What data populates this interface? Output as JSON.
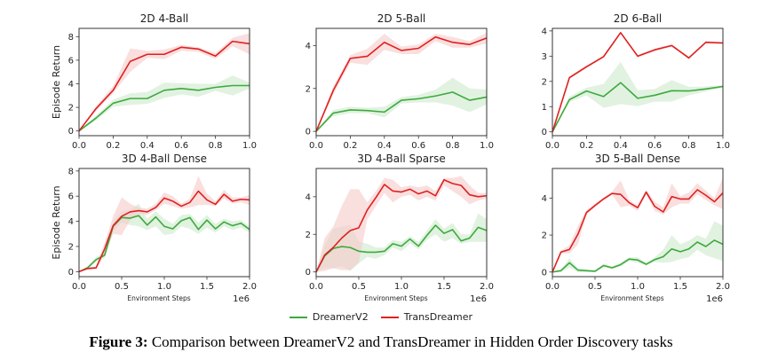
{
  "figure": {
    "caption_label": "Figure 3:",
    "caption_text": " Comparison between DreamerV2 and TransDreamer in Hidden Order Discovery tasks"
  },
  "legend": [
    {
      "name": "DreamerV2",
      "color": "#3daa3d"
    },
    {
      "name": "TransDreamer",
      "color": "#e02020"
    }
  ],
  "colors": {
    "dreamer": "#3daa3d",
    "trans": "#e02020",
    "dreamer_band": "#c9e8c9",
    "trans_band": "#f7caca"
  },
  "chart_data": [
    {
      "type": "line",
      "title": "2D 4-Ball",
      "xlabel": "",
      "ylabel": "Episode Return",
      "xlim": [
        0,
        1.0
      ],
      "ylim": [
        -0.4,
        8.7
      ],
      "xticks": [
        0.0,
        0.2,
        0.4,
        0.6,
        0.8,
        1.0
      ],
      "xticklabels": [
        "0.0",
        "0.2",
        "0.4",
        "0.6",
        "0.8",
        "1.0"
      ],
      "yticks": [
        0,
        2,
        4,
        6,
        8
      ],
      "yticklabels": [
        "0",
        "2",
        "4",
        "6",
        "8"
      ],
      "x_offset_label": "",
      "x": [
        0,
        0.1,
        0.2,
        0.3,
        0.4,
        0.5,
        0.6,
        0.7,
        0.8,
        0.9,
        1.0
      ],
      "series": [
        {
          "name": "DreamerV2",
          "values": [
            0,
            1.1,
            2.35,
            2.75,
            2.75,
            3.45,
            3.6,
            3.45,
            3.7,
            3.85,
            3.85
          ],
          "lower": [
            0,
            0.9,
            2.05,
            2.2,
            2.3,
            2.8,
            3.1,
            2.9,
            3.4,
            3.0,
            3.6
          ],
          "upper": [
            0,
            1.3,
            2.65,
            3.2,
            3.3,
            4.1,
            4.05,
            4.0,
            4.0,
            4.7,
            4.1
          ]
        },
        {
          "name": "TransDreamer",
          "values": [
            0,
            1.9,
            3.45,
            5.9,
            6.5,
            6.5,
            7.1,
            6.95,
            6.35,
            7.6,
            7.4
          ],
          "lower": [
            0,
            1.7,
            3.2,
            5.0,
            6.2,
            6.1,
            6.8,
            6.7,
            6.1,
            7.2,
            6.5
          ],
          "upper": [
            0,
            2.1,
            3.8,
            7.0,
            6.8,
            6.9,
            7.3,
            7.1,
            6.6,
            7.9,
            8.3
          ]
        }
      ]
    },
    {
      "type": "line",
      "title": "2D 5-Ball",
      "xlabel": "",
      "ylabel": "",
      "xlim": [
        0,
        1.0
      ],
      "ylim": [
        -0.2,
        4.8
      ],
      "xticks": [
        0.0,
        0.2,
        0.4,
        0.6,
        0.8,
        1.0
      ],
      "xticklabels": [
        "0.0",
        "0.2",
        "0.4",
        "0.6",
        "0.8",
        "1.0"
      ],
      "yticks": [
        0,
        2,
        4
      ],
      "yticklabels": [
        "0",
        "2",
        "4"
      ],
      "x_offset_label": "",
      "x": [
        0,
        0.1,
        0.2,
        0.3,
        0.4,
        0.5,
        0.6,
        0.7,
        0.8,
        0.9,
        1.0
      ],
      "series": [
        {
          "name": "DreamerV2",
          "values": [
            0,
            0.85,
            1.0,
            0.97,
            0.9,
            1.45,
            1.52,
            1.65,
            1.83,
            1.45,
            1.6
          ],
          "lower": [
            0,
            0.7,
            0.85,
            0.85,
            0.65,
            1.3,
            1.35,
            1.35,
            1.2,
            0.9,
            1.25
          ],
          "upper": [
            0,
            1.0,
            1.15,
            1.1,
            1.15,
            1.6,
            1.7,
            1.95,
            2.5,
            2.0,
            1.95
          ]
        },
        {
          "name": "TransDreamer",
          "values": [
            0,
            1.9,
            3.4,
            3.5,
            4.15,
            3.77,
            3.87,
            4.4,
            4.15,
            4.05,
            4.35
          ],
          "lower": [
            0,
            1.7,
            3.2,
            3.1,
            3.8,
            3.6,
            3.6,
            4.2,
            3.9,
            3.9,
            4.1
          ],
          "upper": [
            0,
            2.1,
            3.55,
            3.85,
            4.55,
            3.95,
            4.05,
            4.55,
            4.4,
            4.2,
            4.6
          ]
        }
      ]
    },
    {
      "type": "line",
      "title": "2D 6-Ball",
      "xlabel": "",
      "ylabel": "",
      "xlim": [
        0,
        1.0
      ],
      "ylim": [
        -0.15,
        4.1
      ],
      "xticks": [
        0.0,
        0.2,
        0.4,
        0.6,
        0.8,
        1.0
      ],
      "xticklabels": [
        "0.0",
        "0.2",
        "0.4",
        "0.6",
        "0.8",
        "1.0"
      ],
      "yticks": [
        0,
        1,
        2,
        3,
        4
      ],
      "yticklabels": [
        "0",
        "1",
        "2",
        "3",
        "4"
      ],
      "x_offset_label": "",
      "x": [
        0,
        0.1,
        0.2,
        0.3,
        0.4,
        0.5,
        0.6,
        0.7,
        0.8,
        0.9,
        1.0
      ],
      "series": [
        {
          "name": "DreamerV2",
          "values": [
            0,
            1.28,
            1.62,
            1.4,
            1.95,
            1.33,
            1.45,
            1.63,
            1.62,
            1.7,
            1.8
          ],
          "lower": [
            0,
            1.18,
            1.45,
            0.95,
            1.1,
            1.02,
            1.2,
            1.2,
            1.45,
            1.6,
            1.75
          ],
          "upper": [
            0,
            1.4,
            1.75,
            1.9,
            2.77,
            1.65,
            1.7,
            2.05,
            1.78,
            1.8,
            1.85
          ]
        },
        {
          "name": "TransDreamer",
          "values": [
            0,
            2.15,
            2.58,
            2.98,
            3.93,
            3.0,
            3.25,
            3.42,
            2.93,
            3.55,
            3.52
          ],
          "lower": [
            0,
            2.1,
            2.53,
            2.93,
            3.88,
            2.95,
            3.2,
            3.37,
            2.88,
            3.5,
            3.47
          ],
          "upper": [
            0,
            2.2,
            2.63,
            3.03,
            3.98,
            3.05,
            3.3,
            3.47,
            2.98,
            3.6,
            3.57
          ]
        }
      ]
    },
    {
      "type": "line",
      "title": "3D 4-Ball Dense",
      "xlabel": "Environment Steps",
      "ylabel": "Episode Return",
      "xlim": [
        0,
        2.0
      ],
      "ylim": [
        -0.4,
        8.2
      ],
      "xticks": [
        0.0,
        0.5,
        1.0,
        1.5,
        2.0
      ],
      "xticklabels": [
        "0.0",
        "0.5",
        "1.0",
        "1.5",
        "2.0"
      ],
      "yticks": [
        0,
        2,
        4,
        6,
        8
      ],
      "yticklabels": [
        "0",
        "2",
        "4",
        "6",
        "8"
      ],
      "x_offset_label": "1e6",
      "x": [
        0,
        0.1,
        0.2,
        0.3,
        0.4,
        0.5,
        0.6,
        0.7,
        0.8,
        0.9,
        1.0,
        1.1,
        1.2,
        1.3,
        1.4,
        1.5,
        1.6,
        1.7,
        1.8,
        1.9,
        2.0
      ],
      "series": [
        {
          "name": "DreamerV2",
          "values": [
            0,
            0.3,
            0.95,
            1.3,
            3.6,
            4.3,
            4.25,
            4.45,
            3.7,
            4.35,
            3.6,
            3.4,
            4.05,
            4.3,
            3.35,
            4.1,
            3.4,
            3.95,
            3.65,
            3.85,
            3.35
          ],
          "lower": [
            0,
            0.2,
            0.8,
            1.1,
            3.2,
            3.9,
            3.7,
            3.6,
            3.3,
            3.6,
            2.9,
            3.0,
            3.6,
            3.4,
            3.0,
            3.5,
            3.1,
            3.6,
            3.3,
            3.5,
            3.1
          ],
          "upper": [
            0,
            0.45,
            1.15,
            1.5,
            4.0,
            4.8,
            4.9,
            5.4,
            4.2,
            4.8,
            4.2,
            3.8,
            4.5,
            4.6,
            3.9,
            4.5,
            3.8,
            4.2,
            4.0,
            4.1,
            3.6
          ]
        },
        {
          "name": "TransDreamer",
          "values": [
            0,
            0.25,
            0.3,
            1.8,
            3.65,
            4.4,
            4.75,
            4.85,
            4.75,
            5.1,
            5.85,
            5.6,
            5.2,
            5.5,
            6.4,
            5.7,
            5.35,
            6.15,
            5.6,
            5.75,
            5.7
          ],
          "lower": [
            0,
            0.15,
            0.2,
            1.3,
            3.0,
            2.9,
            4.1,
            4.6,
            4.5,
            4.9,
            5.4,
            5.2,
            5.0,
            5.1,
            5.3,
            5.3,
            5.2,
            5.8,
            5.4,
            5.5,
            5.3
          ],
          "upper": [
            0,
            0.35,
            0.4,
            2.3,
            4.4,
            5.9,
            5.4,
            5.1,
            5.0,
            5.4,
            6.3,
            6.0,
            5.4,
            5.8,
            7.6,
            6.2,
            5.6,
            6.5,
            5.9,
            5.9,
            6.1
          ]
        }
      ]
    },
    {
      "type": "line",
      "title": "3D 4-Ball Sparse",
      "xlabel": "Environment Steps",
      "ylabel": "",
      "xlim": [
        0,
        2.0
      ],
      "ylim": [
        -0.25,
        5.5
      ],
      "xticks": [
        0.0,
        0.5,
        1.0,
        1.5,
        2.0
      ],
      "xticklabels": [
        "0.0",
        "0.5",
        "1.0",
        "1.5",
        "2.0"
      ],
      "yticks": [
        0,
        2,
        4
      ],
      "yticklabels": [
        "0",
        "2",
        "4"
      ],
      "x_offset_label": "1e6",
      "x": [
        0,
        0.1,
        0.2,
        0.3,
        0.4,
        0.5,
        0.6,
        0.7,
        0.8,
        0.9,
        1.0,
        1.1,
        1.2,
        1.3,
        1.4,
        1.5,
        1.6,
        1.7,
        1.8,
        1.9,
        2.0
      ],
      "series": [
        {
          "name": "DreamerV2",
          "values": [
            0,
            0.85,
            1.25,
            1.35,
            1.3,
            1.1,
            1.05,
            1.05,
            1.1,
            1.5,
            1.37,
            1.75,
            1.37,
            1.95,
            2.48,
            2.05,
            2.25,
            1.65,
            1.8,
            2.37,
            2.2
          ],
          "lower": [
            0,
            0.2,
            0.2,
            0.3,
            0.05,
            0.45,
            0.8,
            0.7,
            0.9,
            1.3,
            1.1,
            1.5,
            1.2,
            1.7,
            2.0,
            1.6,
            1.8,
            1.5,
            1.6,
            1.6,
            1.6
          ],
          "upper": [
            0,
            1.4,
            2.3,
            2.4,
            2.5,
            1.6,
            1.5,
            1.3,
            1.3,
            1.7,
            1.6,
            1.9,
            1.6,
            2.2,
            2.8,
            2.3,
            2.6,
            2.0,
            2.0,
            3.1,
            2.8
          ]
        },
        {
          "name": "TransDreamer",
          "values": [
            0,
            0.9,
            1.3,
            1.8,
            2.2,
            2.35,
            3.3,
            3.95,
            4.65,
            4.3,
            4.25,
            4.4,
            4.15,
            4.3,
            4.05,
            4.9,
            4.7,
            4.6,
            4.1,
            4.0,
            4.05
          ],
          "lower": [
            0,
            0.05,
            0.2,
            0.1,
            0.1,
            0.5,
            2.8,
            3.5,
            4.2,
            3.7,
            4.0,
            4.1,
            3.8,
            4.0,
            3.8,
            4.6,
            4.3,
            4.0,
            3.6,
            3.8,
            3.9
          ],
          "upper": [
            0,
            1.8,
            2.4,
            3.5,
            4.4,
            4.4,
            3.7,
            4.3,
            5.0,
            4.9,
            4.5,
            4.6,
            4.5,
            4.6,
            4.3,
            5.0,
            5.0,
            5.1,
            4.6,
            4.2,
            4.2
          ]
        }
      ]
    },
    {
      "type": "line",
      "title": "3D 5-Ball Dense",
      "xlabel": "Environment Steps",
      "ylabel": "",
      "xlim": [
        0,
        2.0
      ],
      "ylim": [
        -0.25,
        5.6
      ],
      "xticks": [
        0.0,
        0.5,
        1.0,
        1.5,
        2.0
      ],
      "xticklabels": [
        "0.0",
        "0.5",
        "1.0",
        "1.5",
        "2.0"
      ],
      "yticks": [
        0,
        2,
        4
      ],
      "yticklabels": [
        "0",
        "2",
        "4"
      ],
      "x_offset_label": "1e6",
      "x": [
        0,
        0.1,
        0.2,
        0.3,
        0.4,
        0.5,
        0.6,
        0.7,
        0.8,
        0.9,
        1.0,
        1.1,
        1.2,
        1.3,
        1.4,
        1.5,
        1.6,
        1.7,
        1.8,
        1.9,
        2.0
      ],
      "series": [
        {
          "name": "DreamerV2",
          "values": [
            0,
            0.07,
            0.5,
            0.1,
            0.07,
            0.04,
            0.35,
            0.23,
            0.4,
            0.7,
            0.65,
            0.42,
            0.67,
            0.83,
            1.25,
            1.1,
            1.25,
            1.62,
            1.38,
            1.72,
            1.5
          ],
          "lower": [
            0,
            0.0,
            0.25,
            0.0,
            0.0,
            0.0,
            0.25,
            0.15,
            0.3,
            0.6,
            0.5,
            0.35,
            0.55,
            0.5,
            0.55,
            0.7,
            0.8,
            1.2,
            0.9,
            0.75,
            0.6
          ],
          "upper": [
            0,
            0.15,
            0.75,
            0.2,
            0.15,
            0.1,
            0.45,
            0.3,
            0.5,
            0.8,
            0.8,
            0.5,
            0.8,
            1.2,
            2.0,
            1.5,
            1.7,
            2.0,
            1.8,
            2.75,
            2.5
          ]
        },
        {
          "name": "TransDreamer",
          "values": [
            0,
            1.08,
            1.22,
            2.05,
            3.22,
            3.6,
            3.95,
            4.25,
            4.2,
            3.75,
            3.48,
            4.32,
            3.55,
            3.25,
            4.08,
            3.95,
            3.95,
            4.45,
            4.15,
            3.8,
            4.28
          ],
          "lower": [
            0,
            1.0,
            1.0,
            1.5,
            3.1,
            3.5,
            3.9,
            4.2,
            3.5,
            3.6,
            3.3,
            4.2,
            3.3,
            3.1,
            3.5,
            3.7,
            3.7,
            4.2,
            3.9,
            3.6,
            3.4
          ],
          "upper": [
            0,
            1.15,
            1.45,
            2.5,
            3.35,
            3.7,
            4.05,
            4.35,
            4.95,
            3.9,
            3.6,
            4.45,
            3.8,
            3.5,
            4.8,
            4.1,
            4.3,
            4.8,
            4.4,
            4.0,
            5.1
          ]
        }
      ]
    }
  ]
}
